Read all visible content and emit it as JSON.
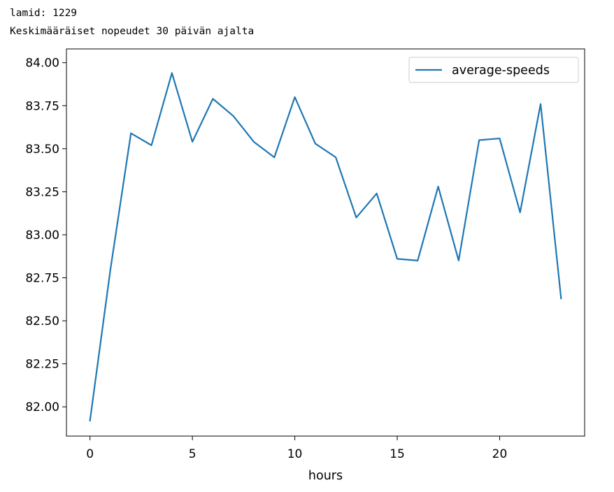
{
  "output": {
    "line1": "lamid: 1229",
    "line2": "Keskimääräiset nopeudet 30 päivän ajalta"
  },
  "chart_data": {
    "type": "line",
    "title": "",
    "xlabel": "hours",
    "ylabel": "",
    "xlim": [
      -1.15,
      24.15
    ],
    "ylim": [
      81.83,
      84.08
    ],
    "xticks": [
      0,
      5,
      10,
      15,
      20
    ],
    "xtick_labels": [
      "0",
      "5",
      "10",
      "15",
      "20"
    ],
    "yticks": [
      82.0,
      82.25,
      82.5,
      82.75,
      83.0,
      83.25,
      83.5,
      83.75,
      84.0
    ],
    "ytick_labels": [
      "82.00",
      "82.25",
      "82.50",
      "82.75",
      "83.00",
      "83.25",
      "83.50",
      "83.75",
      "84.00"
    ],
    "grid": false,
    "legend_position": "top-right",
    "x": [
      0,
      1,
      2,
      3,
      4,
      5,
      6,
      7,
      8,
      9,
      10,
      11,
      12,
      13,
      14,
      15,
      16,
      17,
      18,
      19,
      20,
      21,
      22,
      23
    ],
    "series": [
      {
        "name": "average-speeds",
        "color": "#1f77b4",
        "values": [
          81.92,
          82.8,
          83.59,
          83.52,
          83.94,
          83.54,
          83.79,
          83.69,
          83.54,
          83.45,
          83.8,
          83.53,
          83.45,
          83.1,
          83.24,
          82.86,
          82.85,
          83.28,
          82.85,
          83.55,
          83.56,
          83.13,
          83.76,
          82.63
        ]
      }
    ]
  }
}
